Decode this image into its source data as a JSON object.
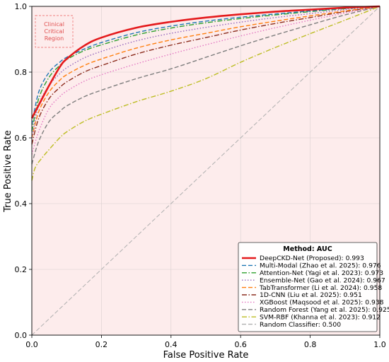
{
  "chart_data": {
    "type": "line",
    "title": "",
    "xlabel": "False Positive Rate",
    "ylabel": "True Positive Rate",
    "xlim": [
      0.0,
      1.0
    ],
    "ylim": [
      0.0,
      1.0
    ],
    "xticks": [
      "0.0",
      "0.2",
      "0.4",
      "0.6",
      "0.8",
      "1.0"
    ],
    "yticks": [
      "0.0",
      "0.2",
      "0.4",
      "0.6",
      "0.8",
      "1.0"
    ],
    "grid": true,
    "legend_position": "bottom-right",
    "legend_title": "Method: AUC",
    "annotation": [
      "Clinical",
      "Critical",
      "Region"
    ],
    "series": [
      {
        "name": "DeepCKD-Net (Proposed): 0.993",
        "color": "#e41a1c",
        "dash": "solid",
        "x": [
          0,
          0.02,
          0.05,
          0.08,
          0.1,
          0.15,
          0.2,
          0.3,
          0.4,
          0.5,
          0.6,
          0.7,
          0.8,
          0.9,
          1.0
        ],
        "y": [
          0.66,
          0.7,
          0.76,
          0.815,
          0.84,
          0.88,
          0.905,
          0.935,
          0.953,
          0.966,
          0.976,
          0.984,
          0.99,
          0.996,
          1.0
        ]
      },
      {
        "name": "Multi-Modal (Zhao et al. 2025): 0.976",
        "color": "#1f77b4",
        "dash": "dashed",
        "x": [
          0,
          0.02,
          0.05,
          0.08,
          0.1,
          0.15,
          0.2,
          0.3,
          0.4,
          0.5,
          0.6,
          0.7,
          0.8,
          0.9,
          1.0
        ],
        "y": [
          0.64,
          0.74,
          0.8,
          0.83,
          0.845,
          0.87,
          0.89,
          0.92,
          0.94,
          0.955,
          0.967,
          0.977,
          0.986,
          0.994,
          1.0
        ]
      },
      {
        "name": "Attention-Net (Yagi et al. 2023): 0.973",
        "color": "#2ca02c",
        "dash": "dashdot",
        "x": [
          0,
          0.02,
          0.05,
          0.08,
          0.1,
          0.15,
          0.2,
          0.3,
          0.4,
          0.5,
          0.6,
          0.7,
          0.8,
          0.9,
          1.0
        ],
        "y": [
          0.62,
          0.72,
          0.785,
          0.82,
          0.838,
          0.865,
          0.883,
          0.913,
          0.934,
          0.95,
          0.963,
          0.974,
          0.984,
          0.993,
          1.0
        ]
      },
      {
        "name": "Ensemble-Net (Gao et al. 2024): 0.967",
        "color": "#9467bd",
        "dash": "dotted",
        "x": [
          0,
          0.02,
          0.05,
          0.08,
          0.1,
          0.15,
          0.2,
          0.3,
          0.4,
          0.5,
          0.6,
          0.7,
          0.8,
          0.9,
          1.0
        ],
        "y": [
          0.6,
          0.7,
          0.76,
          0.795,
          0.813,
          0.843,
          0.863,
          0.895,
          0.918,
          0.936,
          0.952,
          0.966,
          0.978,
          0.99,
          1.0
        ]
      },
      {
        "name": "TabTransformer (Li et al. 2024): 0.958",
        "color": "#ff7f0e",
        "dash": "dashed",
        "x": [
          0,
          0.02,
          0.05,
          0.08,
          0.1,
          0.15,
          0.2,
          0.3,
          0.4,
          0.5,
          0.6,
          0.7,
          0.8,
          0.9,
          1.0
        ],
        "y": [
          0.6,
          0.68,
          0.74,
          0.775,
          0.792,
          0.82,
          0.84,
          0.873,
          0.898,
          0.918,
          0.938,
          0.955,
          0.971,
          0.986,
          1.0
        ]
      },
      {
        "name": "1D-CNN (Liu et al. 2025): 0.951",
        "color": "#8c2d1e",
        "dash": "dashdot",
        "x": [
          0,
          0.02,
          0.05,
          0.08,
          0.1,
          0.15,
          0.2,
          0.3,
          0.4,
          0.5,
          0.6,
          0.7,
          0.8,
          0.9,
          1.0
        ],
        "y": [
          0.58,
          0.66,
          0.72,
          0.753,
          0.77,
          0.8,
          0.82,
          0.855,
          0.882,
          0.905,
          0.928,
          0.948,
          0.966,
          0.984,
          1.0
        ]
      },
      {
        "name": "XGBoost (Maqsood et al. 2025): 0.938",
        "color": "#e377c2",
        "dash": "dotted",
        "x": [
          0,
          0.02,
          0.05,
          0.08,
          0.1,
          0.15,
          0.2,
          0.3,
          0.4,
          0.5,
          0.6,
          0.7,
          0.8,
          0.9,
          1.0
        ],
        "y": [
          0.55,
          0.62,
          0.69,
          0.725,
          0.742,
          0.772,
          0.792,
          0.825,
          0.855,
          0.883,
          0.91,
          0.935,
          0.958,
          0.98,
          1.0
        ]
      },
      {
        "name": "Random Forest (Yang et al. 2025): 0.925",
        "color": "#7f7f7f",
        "dash": "dashed",
        "x": [
          0,
          0.02,
          0.05,
          0.08,
          0.1,
          0.15,
          0.2,
          0.3,
          0.4,
          0.5,
          0.6,
          0.7,
          0.8,
          0.9,
          1.0
        ],
        "y": [
          0.52,
          0.59,
          0.65,
          0.68,
          0.697,
          0.725,
          0.745,
          0.78,
          0.81,
          0.845,
          0.88,
          0.913,
          0.944,
          0.974,
          1.0
        ]
      },
      {
        "name": "SVM-RBF (Khanna et al. 2023): 0.912",
        "color": "#bcbd22",
        "dash": "dashdot",
        "x": [
          0,
          0.01,
          0.03,
          0.05,
          0.08,
          0.1,
          0.15,
          0.2,
          0.3,
          0.4,
          0.5,
          0.6,
          0.7,
          0.8,
          0.9,
          1.0
        ],
        "y": [
          0.47,
          0.51,
          0.54,
          0.565,
          0.6,
          0.618,
          0.65,
          0.672,
          0.71,
          0.742,
          0.78,
          0.83,
          0.875,
          0.917,
          0.958,
          1.0
        ]
      },
      {
        "name": "Random Classifier: 0.500",
        "color": "#b0b0b0",
        "dash": "dashed",
        "x": [
          0,
          1.0
        ],
        "y": [
          0,
          1.0
        ]
      }
    ]
  }
}
